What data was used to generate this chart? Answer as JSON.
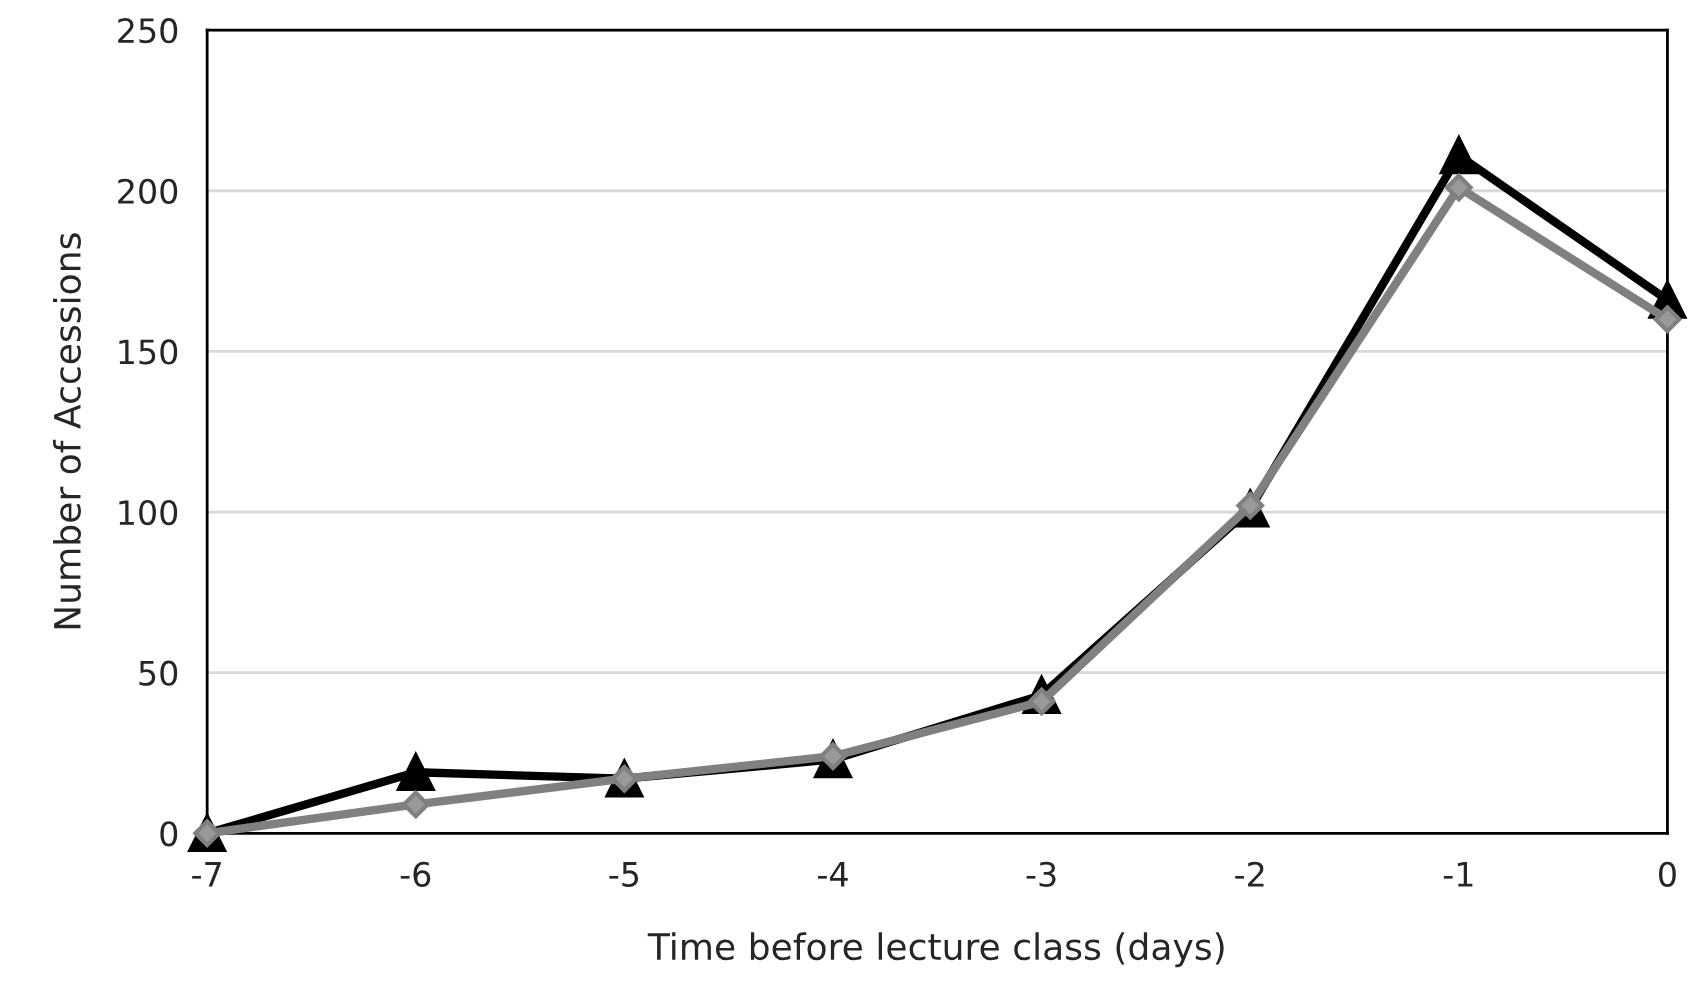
{
  "chart_data": {
    "type": "line",
    "xlabel": "Time before lecture class (days)",
    "ylabel": "Number of Accessions",
    "x": [
      -7,
      -6,
      -5,
      -4,
      -3,
      -2,
      -1,
      0
    ],
    "series": [
      {
        "color": "#000000",
        "marker": "triangle",
        "values": [
          0,
          19,
          17,
          23,
          43,
          101,
          211,
          166
        ]
      },
      {
        "color": "#808080",
        "marker": "diamond",
        "values": [
          0,
          9,
          17,
          24,
          41,
          102,
          201,
          160
        ]
      }
    ],
    "xlim": [
      -7,
      0
    ],
    "xticks": [
      -7,
      -6,
      -5,
      -4,
      -3,
      -2,
      -1,
      0
    ],
    "ylim": [
      0,
      250
    ],
    "yticks": [
      0,
      50,
      100,
      150,
      200,
      250
    ],
    "grid": "y",
    "legend": false,
    "line_style": "solid"
  }
}
